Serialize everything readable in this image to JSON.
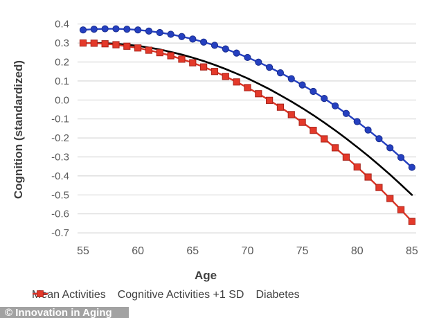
{
  "watermark": {
    "text": "© Innovation in Aging",
    "bg_color": "#A2A2A2",
    "text_color": "#FFFFFF"
  },
  "chart_data": {
    "type": "line",
    "title": "",
    "xlabel": "Age",
    "ylabel": "Cognition (standardized)",
    "xlim": [
      55,
      85
    ],
    "ylim": [
      -0.7,
      0.4
    ],
    "xticks": [
      55,
      60,
      65,
      70,
      75,
      80,
      85
    ],
    "yticks": [
      0.4,
      0.3,
      0.2,
      0.1,
      0.0,
      -0.1,
      -0.2,
      -0.3,
      -0.4,
      -0.5,
      -0.6,
      -0.7
    ],
    "grid": true,
    "grid_color": "#D9D9D9",
    "tick_label_color": "#595959",
    "axis_title_color": "#3F3F3F",
    "legend_position": "bottom",
    "legend_text_color": "#404040",
    "x": [
      55,
      56,
      57,
      58,
      59,
      60,
      61,
      62,
      63,
      64,
      65,
      66,
      67,
      68,
      69,
      70,
      71,
      72,
      73,
      74,
      75,
      76,
      77,
      78,
      79,
      80,
      81,
      82,
      83,
      84,
      85
    ],
    "series": [
      {
        "name": "Mean Activities",
        "color": "#000000",
        "marker": "none",
        "line_width": 2.6,
        "values": [
          0.299,
          0.3,
          0.299,
          0.296,
          0.291,
          0.285,
          0.276,
          0.266,
          0.253,
          0.239,
          0.223,
          0.205,
          0.185,
          0.163,
          0.139,
          0.114,
          0.086,
          0.057,
          0.025,
          -0.008,
          -0.043,
          -0.08,
          -0.119,
          -0.16,
          -0.203,
          -0.248,
          -0.294,
          -0.343,
          -0.393,
          -0.446,
          -0.5
        ]
      },
      {
        "name": "Cognitive Activities +1 SD",
        "color": "#2540C0",
        "marker": "circle",
        "marker_fill": "#2540C0",
        "marker_stroke": "#1A2E8E",
        "line_width": 2.4,
        "values": [
          0.369,
          0.373,
          0.375,
          0.375,
          0.373,
          0.369,
          0.363,
          0.355,
          0.346,
          0.334,
          0.321,
          0.305,
          0.288,
          0.269,
          0.247,
          0.224,
          0.199,
          0.172,
          0.143,
          0.112,
          0.079,
          0.045,
          0.008,
          -0.031,
          -0.071,
          -0.114,
          -0.158,
          -0.204,
          -0.252,
          -0.303,
          -0.355
        ]
      },
      {
        "name": "Diabetes",
        "color": "#D93425",
        "marker": "square",
        "marker_fill": "#E4392A",
        "marker_stroke": "#A8231A",
        "line_width": 2.4,
        "values": [
          0.3,
          0.299,
          0.296,
          0.291,
          0.283,
          0.274,
          0.262,
          0.249,
          0.233,
          0.215,
          0.196,
          0.174,
          0.15,
          0.124,
          0.095,
          0.065,
          0.033,
          -0.002,
          -0.038,
          -0.077,
          -0.118,
          -0.16,
          -0.205,
          -0.252,
          -0.301,
          -0.353,
          -0.406,
          -0.461,
          -0.519,
          -0.578,
          -0.64
        ]
      }
    ]
  }
}
